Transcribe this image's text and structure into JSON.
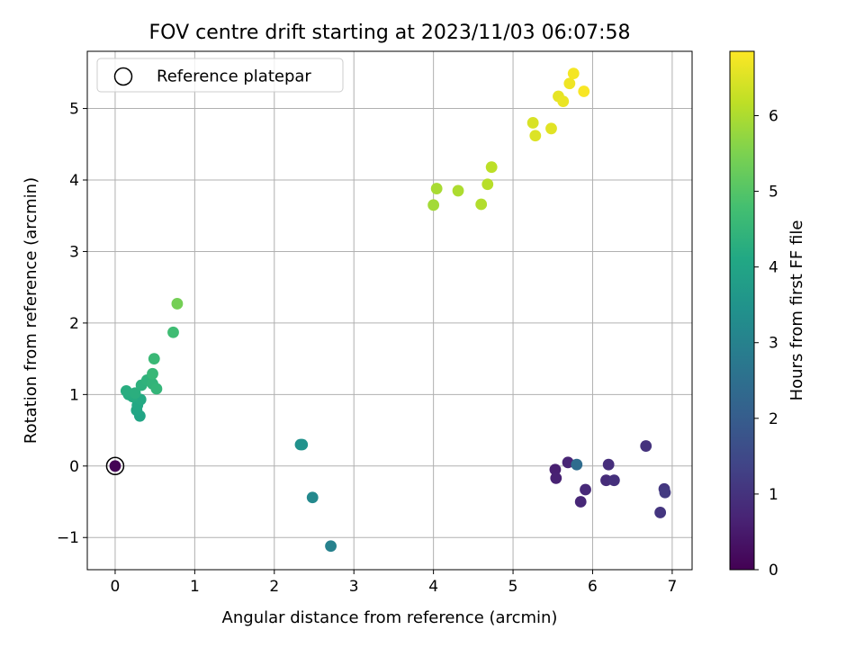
{
  "chart_data": {
    "type": "scatter",
    "title": "FOV centre drift starting at 2023/11/03 06:07:58",
    "xlabel": "Angular distance from reference (arcmin)",
    "ylabel": "Rotation from reference (arcmin)",
    "xlim": [
      -0.35,
      7.25
    ],
    "ylim": [
      -1.45,
      5.8
    ],
    "xticks": [
      0,
      1,
      2,
      3,
      4,
      5,
      6,
      7
    ],
    "xtick_labels": [
      "0",
      "1",
      "2",
      "3",
      "4",
      "5",
      "6",
      "7"
    ],
    "yticks": [
      -1,
      0,
      1,
      2,
      3,
      4,
      5
    ],
    "ytick_labels": [
      "−1",
      "0",
      "1",
      "2",
      "3",
      "4",
      "5"
    ],
    "grid": true,
    "legend": {
      "position": "top-left",
      "entries": [
        "Reference platepar"
      ]
    },
    "reference_point": {
      "x": 0,
      "y": 0
    },
    "colorbar": {
      "label": "Hours from first FF file",
      "colormap": "viridis",
      "range": [
        0,
        6.85
      ],
      "ticks": [
        0,
        1,
        2,
        3,
        4,
        5,
        6
      ],
      "tick_labels": [
        "0",
        "1",
        "2",
        "3",
        "4",
        "5",
        "6"
      ]
    },
    "points": [
      {
        "x": 0.0,
        "y": 0.0,
        "h": 0.05
      },
      {
        "x": 5.53,
        "y": -0.05,
        "h": 0.6
      },
      {
        "x": 5.54,
        "y": -0.17,
        "h": 0.65
      },
      {
        "x": 5.69,
        "y": 0.05,
        "h": 0.7
      },
      {
        "x": 5.85,
        "y": -0.5,
        "h": 0.75
      },
      {
        "x": 5.91,
        "y": -0.33,
        "h": 0.8
      },
      {
        "x": 6.17,
        "y": -0.2,
        "h": 0.85
      },
      {
        "x": 6.2,
        "y": 0.02,
        "h": 0.9
      },
      {
        "x": 6.27,
        "y": -0.2,
        "h": 0.95
      },
      {
        "x": 6.67,
        "y": 0.28,
        "h": 1.0
      },
      {
        "x": 6.85,
        "y": -0.65,
        "h": 1.05
      },
      {
        "x": 6.9,
        "y": -0.32,
        "h": 1.1
      },
      {
        "x": 6.91,
        "y": -0.37,
        "h": 1.15
      },
      {
        "x": 5.8,
        "y": 0.02,
        "h": 2.4
      },
      {
        "x": 2.71,
        "y": -1.12,
        "h": 3.0
      },
      {
        "x": 2.48,
        "y": -0.44,
        "h": 3.2
      },
      {
        "x": 2.33,
        "y": 0.3,
        "h": 3.4
      },
      {
        "x": 2.35,
        "y": 0.3,
        "h": 3.45
      },
      {
        "x": 0.31,
        "y": 0.7,
        "h": 4.0
      },
      {
        "x": 0.27,
        "y": 0.78,
        "h": 4.05
      },
      {
        "x": 0.28,
        "y": 0.85,
        "h": 4.1
      },
      {
        "x": 0.32,
        "y": 0.93,
        "h": 4.15
      },
      {
        "x": 0.22,
        "y": 0.97,
        "h": 4.2
      },
      {
        "x": 0.17,
        "y": 1.0,
        "h": 4.22
      },
      {
        "x": 0.14,
        "y": 1.05,
        "h": 4.25
      },
      {
        "x": 0.25,
        "y": 1.02,
        "h": 4.3
      },
      {
        "x": 0.33,
        "y": 1.13,
        "h": 4.35
      },
      {
        "x": 0.4,
        "y": 1.2,
        "h": 4.4
      },
      {
        "x": 0.47,
        "y": 1.15,
        "h": 4.45
      },
      {
        "x": 0.52,
        "y": 1.08,
        "h": 4.5
      },
      {
        "x": 0.47,
        "y": 1.29,
        "h": 4.55
      },
      {
        "x": 0.49,
        "y": 1.5,
        "h": 4.6
      },
      {
        "x": 0.73,
        "y": 1.87,
        "h": 4.7
      },
      {
        "x": 0.78,
        "y": 2.27,
        "h": 5.4
      },
      {
        "x": 4.0,
        "y": 3.65,
        "h": 5.9
      },
      {
        "x": 4.04,
        "y": 3.88,
        "h": 5.95
      },
      {
        "x": 4.31,
        "y": 3.85,
        "h": 6.0
      },
      {
        "x": 4.6,
        "y": 3.66,
        "h": 6.05
      },
      {
        "x": 4.68,
        "y": 3.94,
        "h": 6.1
      },
      {
        "x": 4.73,
        "y": 4.18,
        "h": 6.15
      },
      {
        "x": 5.25,
        "y": 4.8,
        "h": 6.45
      },
      {
        "x": 5.28,
        "y": 4.62,
        "h": 6.5
      },
      {
        "x": 5.48,
        "y": 4.72,
        "h": 6.55
      },
      {
        "x": 5.57,
        "y": 5.17,
        "h": 6.6
      },
      {
        "x": 5.63,
        "y": 5.1,
        "h": 6.65
      },
      {
        "x": 5.71,
        "y": 5.35,
        "h": 6.7
      },
      {
        "x": 5.76,
        "y": 5.49,
        "h": 6.75
      },
      {
        "x": 5.89,
        "y": 5.24,
        "h": 6.8
      }
    ]
  }
}
